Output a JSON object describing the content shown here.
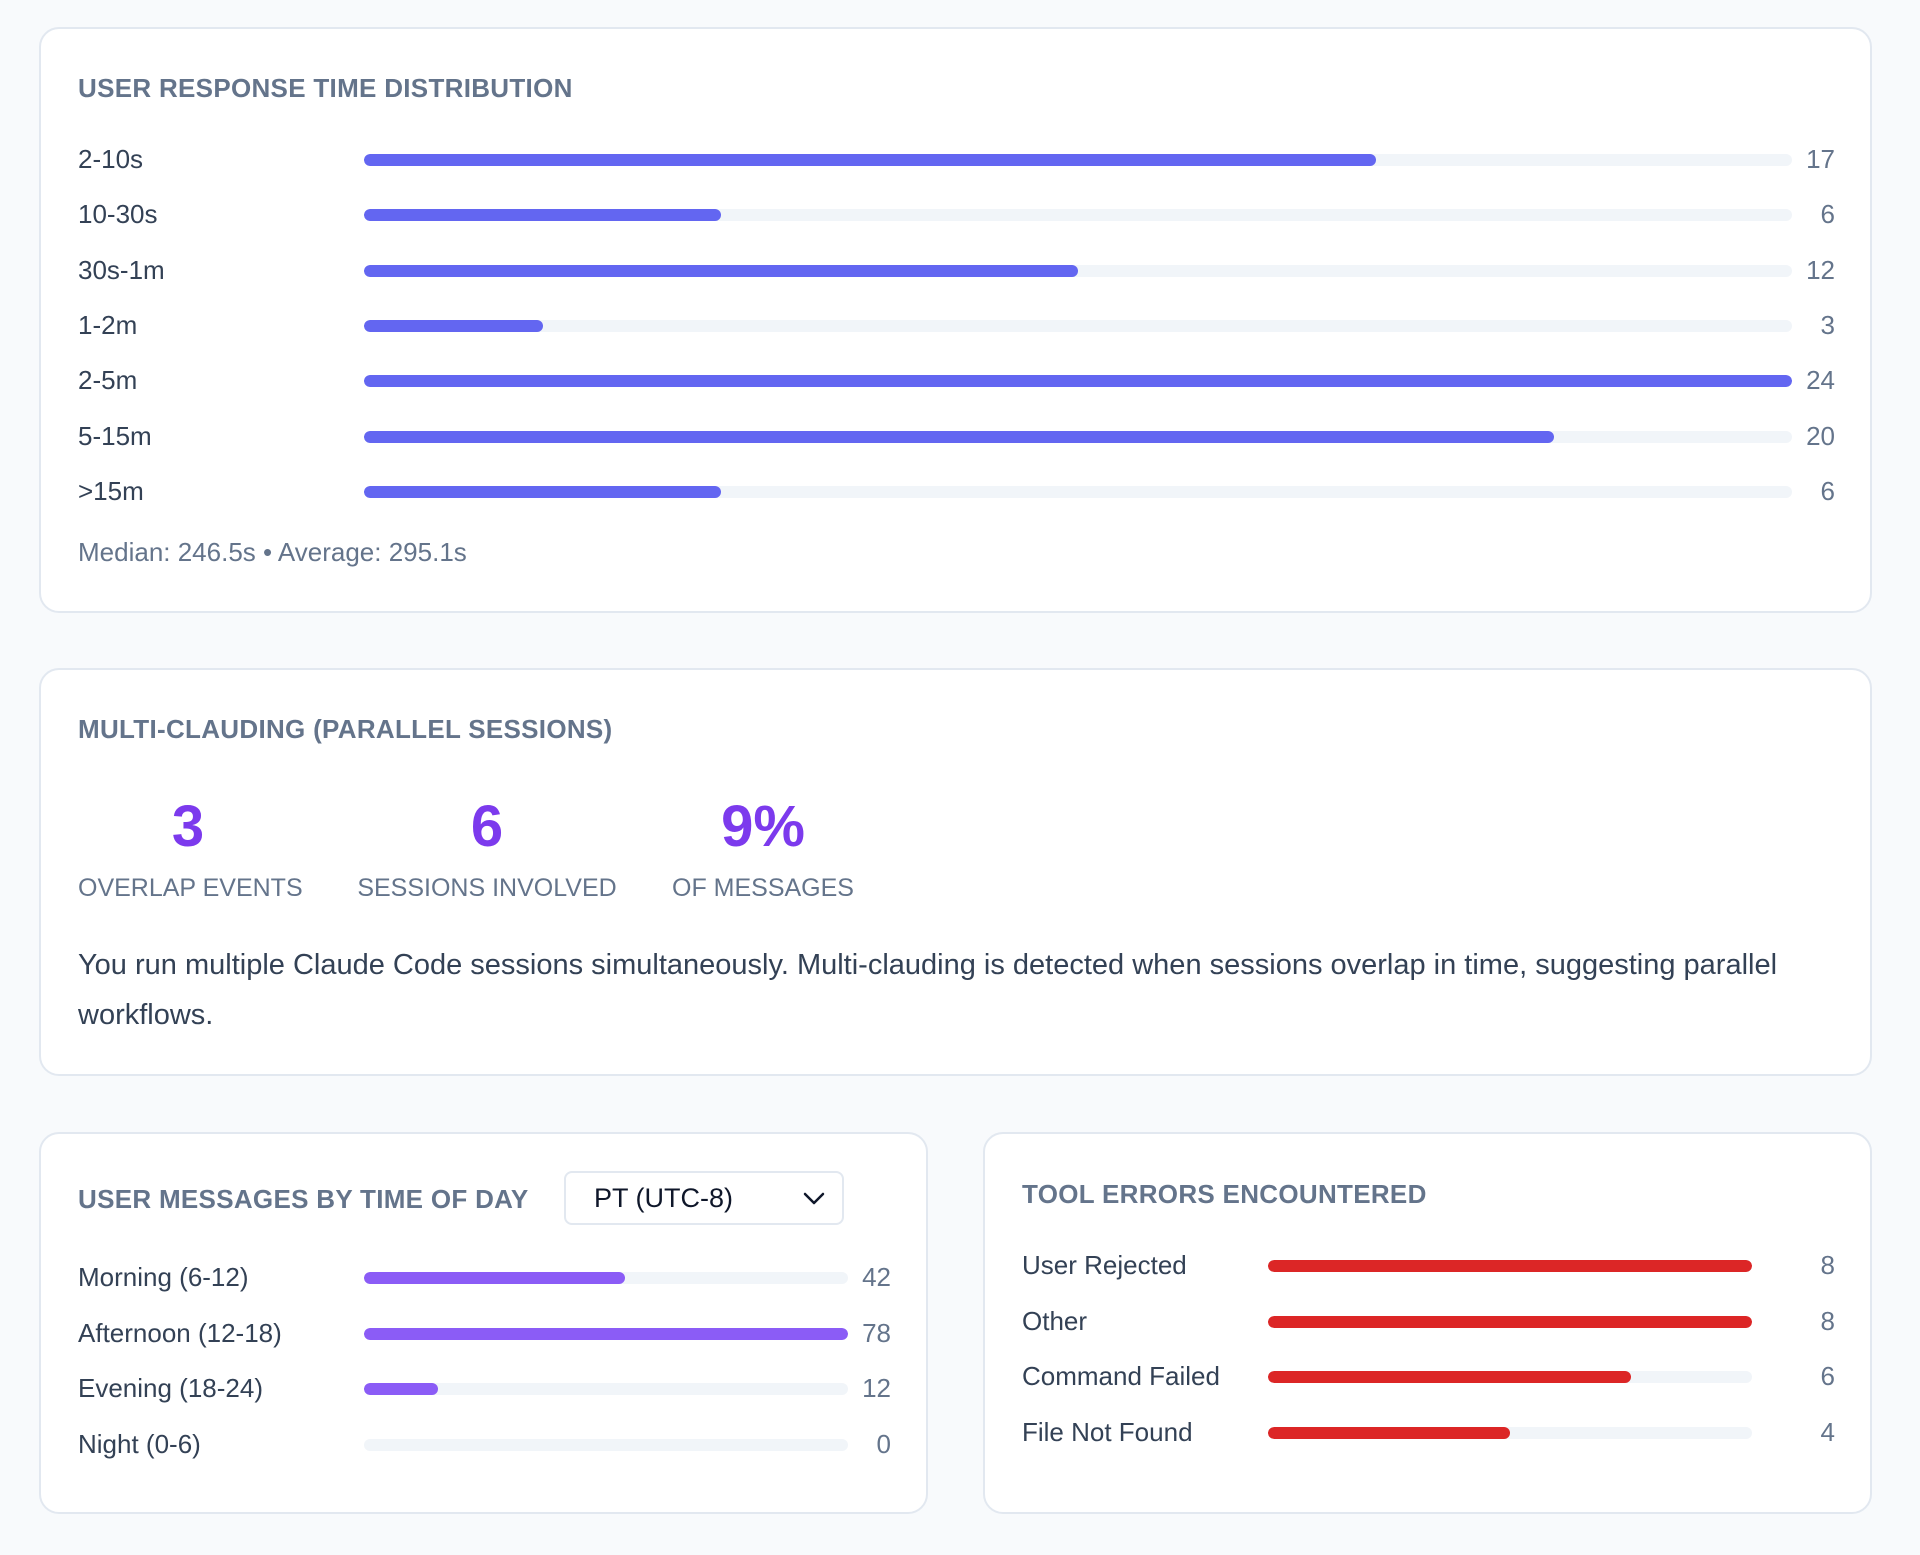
{
  "colors": {
    "response_bar": "#6366f1",
    "time_bar": "#8b5cf6",
    "error_bar": "#dc2626",
    "accent": "#7c3aed"
  },
  "response": {
    "title": "USER RESPONSE TIME DISTRIBUTION",
    "summary": "Median: 246.5s • Average: 295.1s"
  },
  "multi": {
    "title": "MULTI-CLAUDING (PARALLEL SESSIONS)",
    "stats": [
      {
        "value": "3",
        "label": "OVERLAP EVENTS"
      },
      {
        "value": "6",
        "label": "SESSIONS INVOLVED"
      },
      {
        "value": "9%",
        "label": "OF MESSAGES"
      }
    ],
    "description": "You run multiple Claude Code sessions simultaneously. Multi-clauding is detected when sessions overlap in time, suggesting parallel workflows."
  },
  "time_of_day": {
    "title": "USER MESSAGES BY TIME OF DAY",
    "timezone_select": {
      "value": "PT (UTC-8)",
      "icon": "chevron-down-icon"
    }
  },
  "tool_errors": {
    "title": "TOOL ERRORS ENCOUNTERED"
  },
  "chart_data": [
    {
      "type": "bar",
      "orientation": "horizontal",
      "title": "USER RESPONSE TIME DISTRIBUTION",
      "categories": [
        "2-10s",
        "10-30s",
        "30s-1m",
        "1-2m",
        "2-5m",
        "5-15m",
        ">15m"
      ],
      "values": [
        17,
        6,
        12,
        3,
        24,
        20,
        6
      ],
      "xlim": [
        0,
        24
      ]
    },
    {
      "type": "bar",
      "orientation": "horizontal",
      "title": "USER MESSAGES BY TIME OF DAY",
      "categories": [
        "Morning (6-12)",
        "Afternoon (12-18)",
        "Evening (18-24)",
        "Night (0-6)"
      ],
      "values": [
        42,
        78,
        12,
        0
      ],
      "xlim": [
        0,
        78
      ]
    },
    {
      "type": "bar",
      "orientation": "horizontal",
      "title": "TOOL ERRORS ENCOUNTERED",
      "categories": [
        "User Rejected",
        "Other",
        "Command Failed",
        "File Not Found"
      ],
      "values": [
        8,
        8,
        6,
        4
      ],
      "xlim": [
        0,
        8
      ]
    }
  ]
}
